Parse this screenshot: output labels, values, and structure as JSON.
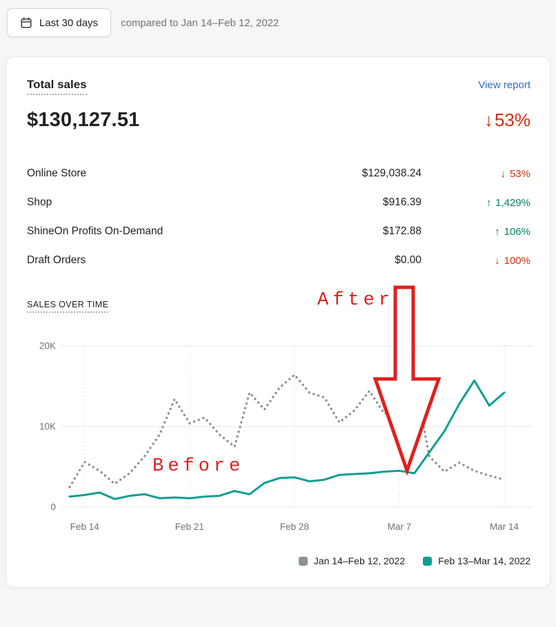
{
  "colors": {
    "page_bg": "#f6f6f7",
    "text": "#202223",
    "muted": "#6d7175",
    "link": "#2c6ecb",
    "negative": "#d72c0d",
    "positive": "#008060",
    "annotation": "#e0201d"
  },
  "toolbar": {
    "date_range_label": "Last 30 days",
    "compared_to": "compared to Jan 14–Feb 12, 2022"
  },
  "card": {
    "title": "Total sales",
    "view_report_label": "View report",
    "total_amount": "$130,127.51",
    "total_change_arrow": "↓",
    "total_change_value": "53%",
    "rows": [
      {
        "label": "Online Store",
        "value": "$129,038.24",
        "arrow": "↓",
        "change": "53%",
        "direction": "down"
      },
      {
        "label": "Shop",
        "value": "$916.39",
        "arrow": "↑",
        "change": "1,429%",
        "direction": "up"
      },
      {
        "label": "ShineOn Profits On-Demand",
        "value": "$172.88",
        "arrow": "↑",
        "change": "106%",
        "direction": "up"
      },
      {
        "label": "Draft Orders",
        "value": "$0.00",
        "arrow": "↓",
        "change": "100%",
        "direction": "down"
      }
    ],
    "section_label": "SALES OVER TIME",
    "annotations": {
      "after": "After",
      "before": "Before"
    }
  },
  "chart_data": {
    "type": "line",
    "title": "Sales over time",
    "ylabel": "",
    "xlabel": "",
    "ylim": [
      0,
      20000
    ],
    "y_ticks": [
      0,
      10000,
      20000
    ],
    "y_tick_labels": [
      "0",
      "10K",
      "20K"
    ],
    "x_tick_labels": [
      "Feb 14",
      "Feb 21",
      "Feb 28",
      "Mar 7",
      "Mar 14"
    ],
    "x_tick_indices": [
      1,
      8,
      15,
      22,
      29
    ],
    "grid": "horizontal solid, vertical dashed at week ticks",
    "legend_position": "bottom-right",
    "series": [
      {
        "name": "Jan 14–Feb 12, 2022",
        "style": "dotted",
        "color": "#8c9196",
        "values": [
          2500,
          5600,
          4500,
          2900,
          4200,
          6300,
          9000,
          13400,
          10400,
          11100,
          9000,
          7500,
          14200,
          12100,
          14800,
          16400,
          14200,
          13600,
          10500,
          12000,
          14400,
          11600,
          12300,
          16000,
          6300,
          4400,
          5500,
          4500,
          3900,
          3400
        ]
      },
      {
        "name": "Feb 13–Mar 14, 2022",
        "style": "solid",
        "color": "#0c9e93",
        "values": [
          1300,
          1500,
          1800,
          1000,
          1400,
          1600,
          1100,
          1200,
          1100,
          1300,
          1400,
          2000,
          1600,
          3000,
          3600,
          3700,
          3200,
          3400,
          4000,
          4100,
          4200,
          4400,
          4500,
          4200,
          6800,
          9400,
          12800,
          15700,
          12600,
          14200
        ]
      }
    ]
  }
}
